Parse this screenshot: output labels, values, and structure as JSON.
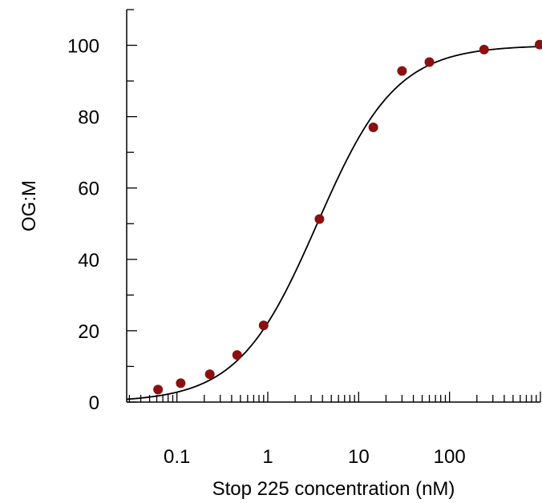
{
  "chart_data": {
    "type": "scatter",
    "xlabel": "Stop 225 concentration (nM)",
    "ylabel": "OG:M",
    "x_scale": "log",
    "xlim": [
      0.028,
      1000
    ],
    "ylim": [
      0,
      110
    ],
    "x_ticks": [
      {
        "value": 0.1,
        "label": "0.1"
      },
      {
        "value": 1,
        "label": "1"
      },
      {
        "value": 10,
        "label": "10"
      },
      {
        "value": 100,
        "label": "100"
      }
    ],
    "y_ticks": [
      {
        "value": 0,
        "label": "0"
      },
      {
        "value": 20,
        "label": "20"
      },
      {
        "value": 40,
        "label": "40"
      },
      {
        "value": 60,
        "label": "60"
      },
      {
        "value": 80,
        "label": "80"
      },
      {
        "value": 100,
        "label": "100"
      }
    ],
    "grid": false,
    "point_color": "#8b1010",
    "line_color": "#000000",
    "series": [
      {
        "type": "scatter",
        "x": [
          0.062,
          0.11,
          0.23,
          0.46,
          0.9,
          3.7,
          14.5,
          30,
          60,
          240,
          980
        ],
        "y": [
          3.5,
          5.3,
          7.8,
          13.2,
          21.5,
          51.3,
          77,
          92.8,
          95.3,
          98.8,
          100.2
        ]
      }
    ],
    "fit": {
      "type": "sigmoid",
      "bottom": 0,
      "top": 100,
      "ec50": 3.5,
      "hill": 1
    }
  }
}
